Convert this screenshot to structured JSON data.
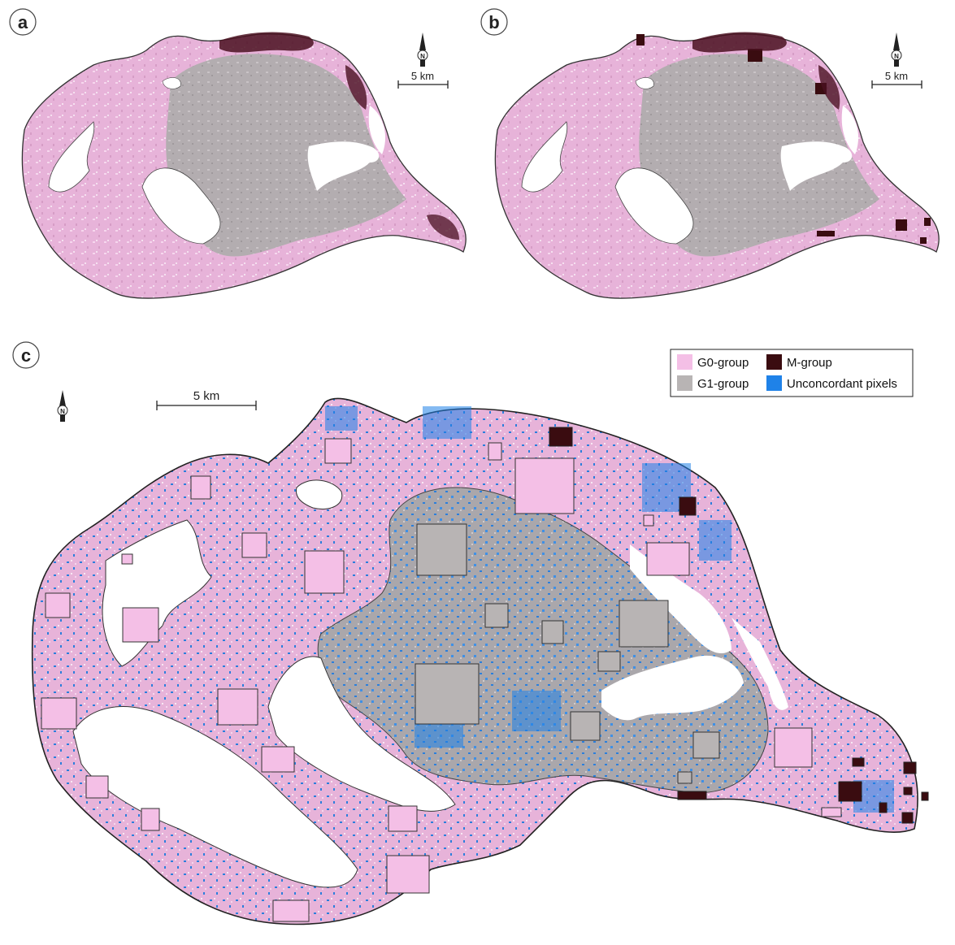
{
  "panels": [
    {
      "letter": "a",
      "scale_label": "5 km",
      "north_letter": "N"
    },
    {
      "letter": "b",
      "scale_label": "5 km",
      "north_letter": "N"
    },
    {
      "letter": "c",
      "scale_label": "5 km",
      "north_letter": "N"
    }
  ],
  "legend": {
    "items": [
      {
        "label": "G0-group",
        "color": "#f4bfe6"
      },
      {
        "label": "M-group",
        "color": "#3a0c10"
      },
      {
        "label": "G1-group",
        "color": "#b8b4b4"
      },
      {
        "label": "Unconcordant pixels",
        "color": "#1f82e8"
      }
    ]
  },
  "colors": {
    "map_pink": "#e9b6db",
    "map_grey": "#b3adb0",
    "dark_patch": "#4a1020",
    "water": "#ffffff",
    "outline": "#333333",
    "blue_noise": "#2b7fdc"
  }
}
